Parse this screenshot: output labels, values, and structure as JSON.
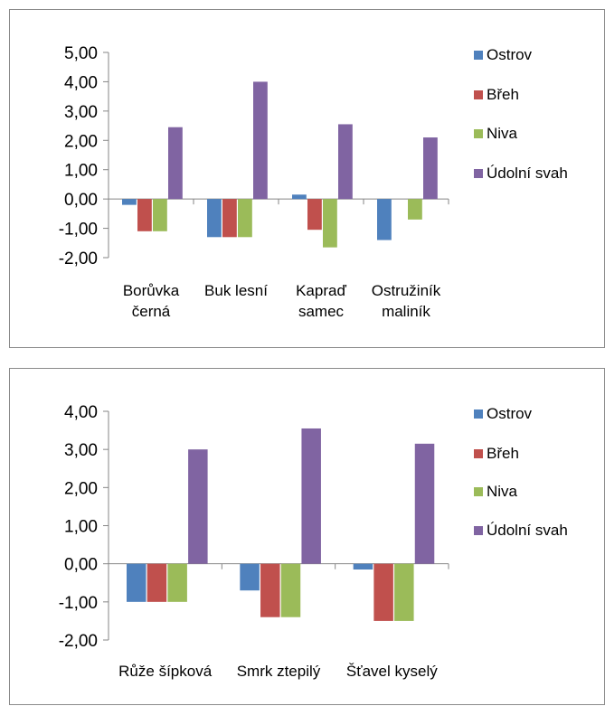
{
  "chart_data": [
    {
      "type": "bar",
      "categories": [
        [
          "Borůvka",
          "černá"
        ],
        [
          "Buk lesní"
        ],
        [
          "Kapraď",
          "samec"
        ],
        [
          "Ostružiník",
          "maliník"
        ]
      ],
      "series": [
        {
          "name": "Ostrov",
          "color": "#4F81BD",
          "values": [
            -0.2,
            -1.3,
            0.15,
            -1.4
          ]
        },
        {
          "name": "Břeh",
          "color": "#C0504D",
          "values": [
            -1.1,
            -1.3,
            -1.05,
            0
          ]
        },
        {
          "name": "Niva",
          "color": "#9BBB59",
          "values": [
            -1.1,
            -1.3,
            -1.65,
            -0.7
          ]
        },
        {
          "name": "Údolní svah",
          "color": "#8064A2",
          "values": [
            2.45,
            4.0,
            2.55,
            2.1
          ]
        }
      ],
      "yticks": [
        "5,00",
        "4,00",
        "3,00",
        "2,00",
        "1,00",
        "0,00",
        "-1,00",
        "-2,00"
      ],
      "ylim": [
        -2,
        5
      ]
    },
    {
      "type": "bar",
      "categories": [
        [
          "Růže šípková"
        ],
        [
          "Smrk ztepilý"
        ],
        [
          "Šťavel kyselý"
        ]
      ],
      "series": [
        {
          "name": "Ostrov",
          "color": "#4F81BD",
          "values": [
            -1.0,
            -0.7,
            -0.15
          ]
        },
        {
          "name": "Břeh",
          "color": "#C0504D",
          "values": [
            -1.0,
            -1.4,
            -1.5
          ]
        },
        {
          "name": "Niva",
          "color": "#9BBB59",
          "values": [
            -1.0,
            -1.4,
            -1.5
          ]
        },
        {
          "name": "Údolní svah",
          "color": "#8064A2",
          "values": [
            3.0,
            3.55,
            3.15
          ]
        }
      ],
      "yticks": [
        "4,00",
        "3,00",
        "2,00",
        "1,00",
        "0,00",
        "-1,00",
        "-2,00"
      ],
      "ylim": [
        -2,
        4
      ]
    }
  ]
}
